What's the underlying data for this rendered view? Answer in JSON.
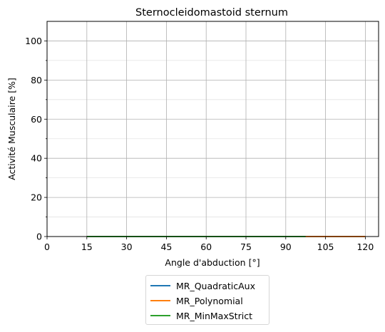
{
  "chart_data": {
    "type": "line",
    "title": "Sternocleidomastoid sternum",
    "xlabel": "Angle d'abduction [°]",
    "ylabel": "Activité Musculaire [%]",
    "xlim": [
      0,
      125
    ],
    "ylim": [
      0,
      110
    ],
    "x_ticks": [
      0,
      15,
      30,
      45,
      60,
      75,
      90,
      105,
      120
    ],
    "y_ticks": [
      0,
      20,
      40,
      60,
      80,
      100
    ],
    "y_minor_ticks": [
      10,
      30,
      50,
      70,
      90
    ],
    "grid": true,
    "legend_position": "below",
    "series": [
      {
        "name": "MR_QuadraticAux",
        "color": "#1f77b4",
        "x": [
          15,
          120
        ],
        "y": [
          0,
          0
        ]
      },
      {
        "name": "MR_Polynomial",
        "color": "#ff7f0e",
        "x": [
          15,
          120
        ],
        "y": [
          0,
          0
        ]
      },
      {
        "name": "MR_MinMaxStrict",
        "color": "#2ca02c",
        "x": [
          15,
          97.5
        ],
        "y": [
          0,
          0
        ]
      }
    ]
  }
}
